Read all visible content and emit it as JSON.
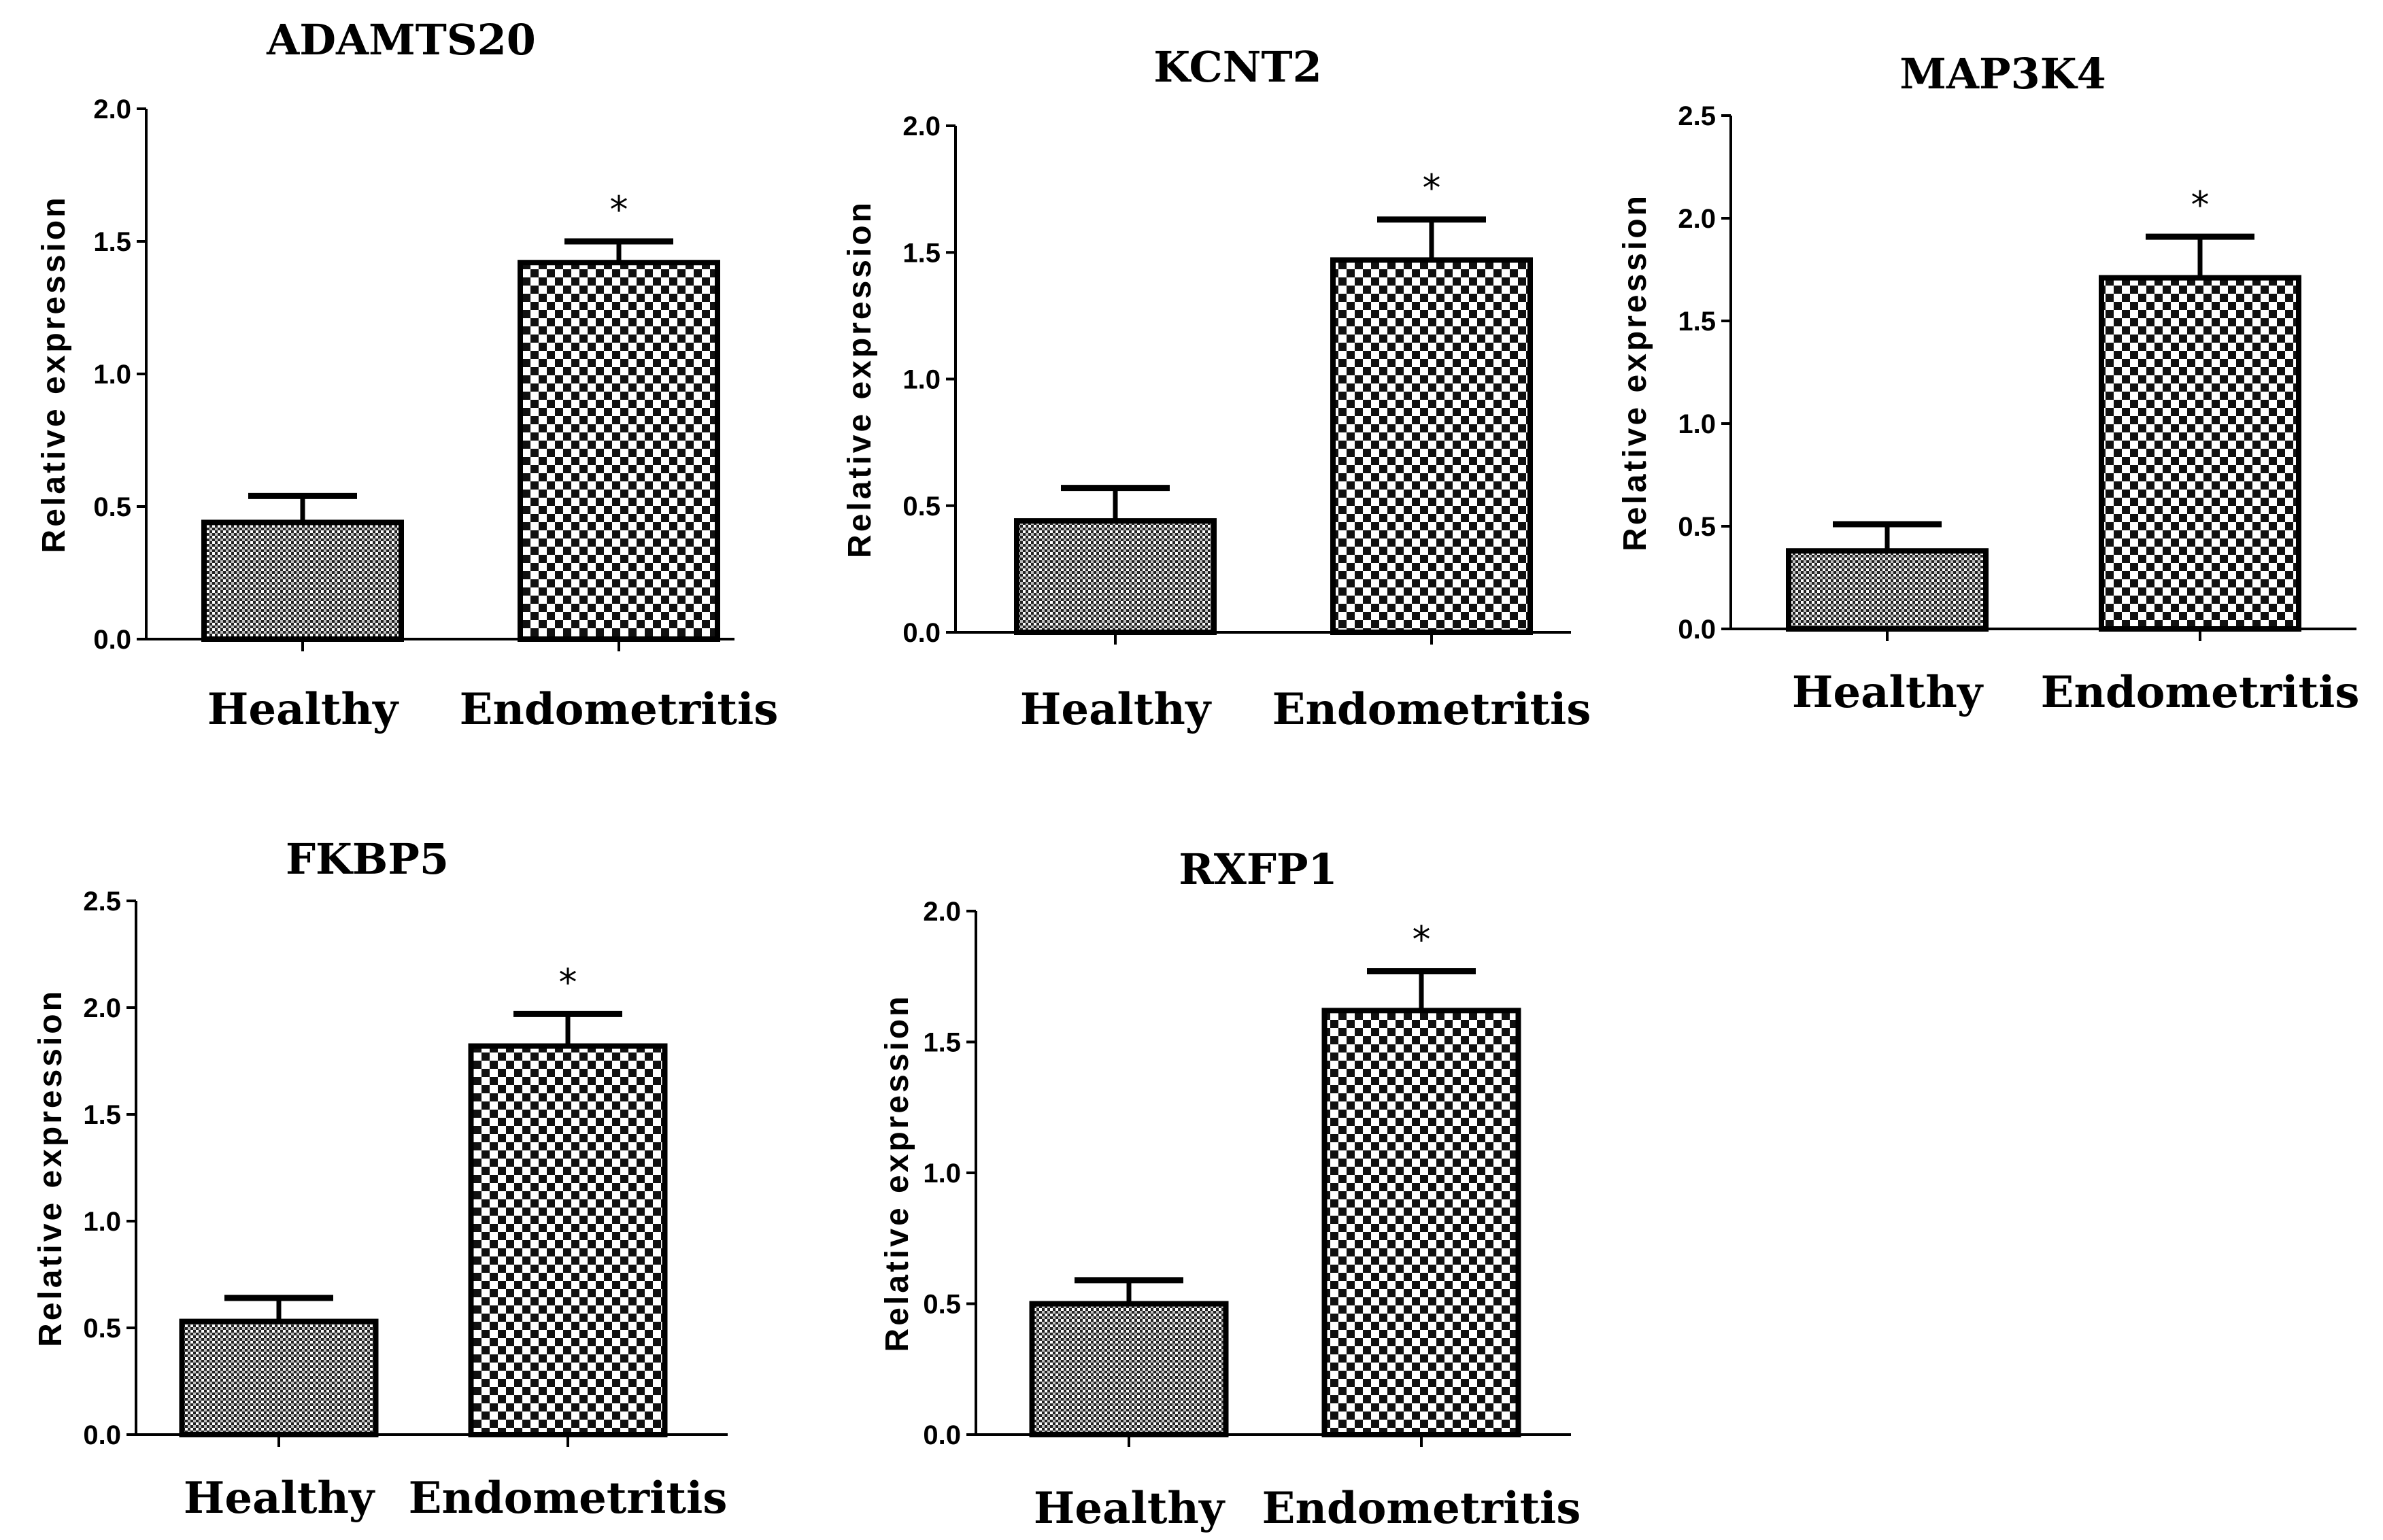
{
  "chart_data": [
    {
      "type": "bar",
      "title": "ADAMTS20",
      "categories": [
        "Healthy",
        "Endometritis"
      ],
      "values": [
        0.44,
        1.42
      ],
      "errors": [
        0.1,
        0.08
      ],
      "significance": [
        "",
        "*"
      ],
      "ylabel": "Relative expression",
      "ylim": [
        0,
        2.0
      ],
      "yticks": [
        "0.0",
        "0.5",
        "1.0",
        "1.5",
        "2.0"
      ]
    },
    {
      "type": "bar",
      "title": "KCNT2",
      "categories": [
        "Healthy",
        "Endometritis"
      ],
      "values": [
        0.44,
        1.47
      ],
      "errors": [
        0.13,
        0.16
      ],
      "significance": [
        "",
        "*"
      ],
      "ylabel": "Relative expression",
      "ylim": [
        0,
        2.0
      ],
      "yticks": [
        "0.0",
        "0.5",
        "1.0",
        "1.5",
        "2.0"
      ]
    },
    {
      "type": "bar",
      "title": "MAP3K4",
      "categories": [
        "Healthy",
        "Endometritis"
      ],
      "values": [
        0.38,
        1.71
      ],
      "errors": [
        0.13,
        0.2
      ],
      "significance": [
        "",
        "*"
      ],
      "ylabel": "Relative expression",
      "ylim": [
        0,
        2.5
      ],
      "yticks": [
        "0.0",
        "0.5",
        "1.0",
        "1.5",
        "2.0",
        "2.5"
      ]
    },
    {
      "type": "bar",
      "title": "FKBP5",
      "categories": [
        "Healthy",
        "Endometritis"
      ],
      "values": [
        0.53,
        1.82
      ],
      "errors": [
        0.11,
        0.15
      ],
      "significance": [
        "",
        "*"
      ],
      "ylabel": "Relative expression",
      "ylim": [
        0,
        2.5
      ],
      "yticks": [
        "0.0",
        "0.5",
        "1.0",
        "1.5",
        "2.0",
        "2.5"
      ]
    },
    {
      "type": "bar",
      "title": "RXFP1",
      "categories": [
        "Healthy",
        "Endometritis"
      ],
      "values": [
        0.5,
        1.62
      ],
      "errors": [
        0.09,
        0.15
      ],
      "significance": [
        "",
        "*"
      ],
      "ylabel": "Relative expression",
      "ylim": [
        0,
        2.0
      ],
      "yticks": [
        "0.0",
        "0.5",
        "1.0",
        "1.5",
        "2.0"
      ]
    }
  ]
}
